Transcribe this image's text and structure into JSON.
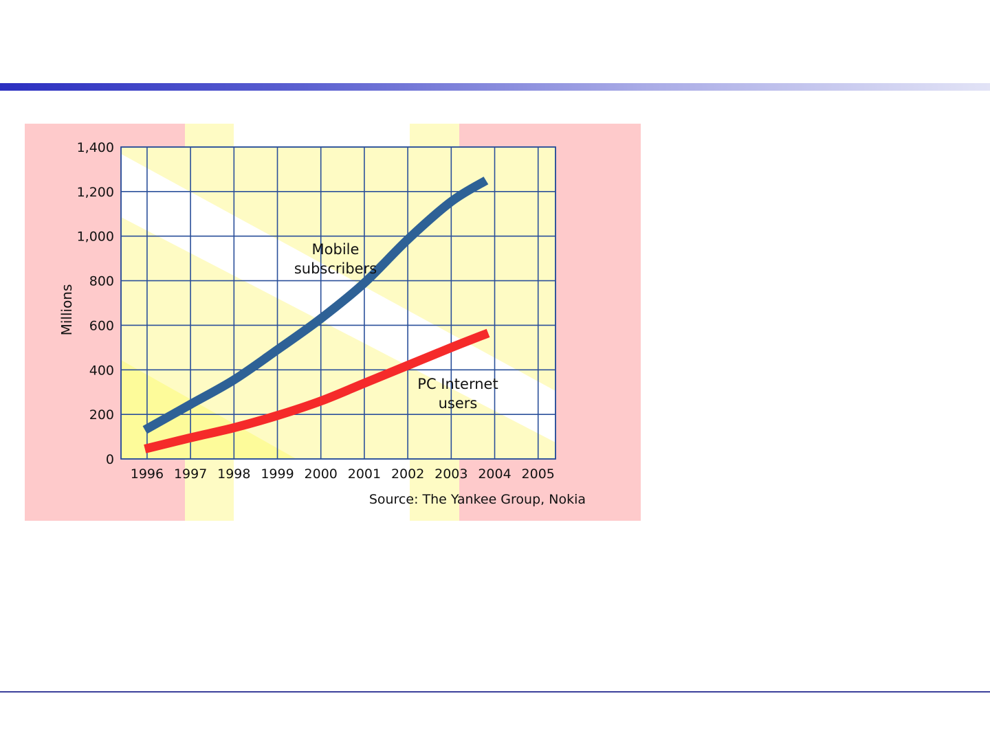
{
  "colors": {
    "header_bar_start": "#2b2fc0",
    "header_bar_end": "#e2e3f6",
    "footer_rule": "#3a3f9a",
    "chart_frame_bg": "#fecacb",
    "chart_plot_bg": "#fefbc4",
    "grid": "#2a4f9a",
    "mobile_series": "#2e6196",
    "pc_series": "#f52a2a"
  },
  "chart_data": {
    "type": "line",
    "title": "",
    "xlabel": "",
    "ylabel": "Millions",
    "x": [
      1996,
      1997,
      1998,
      1999,
      2000,
      2001,
      2002,
      2003,
      2004,
      2005
    ],
    "x_tick_labels": [
      "1996",
      "1997",
      "1998",
      "1999",
      "2000",
      "2001",
      "2002",
      "2003",
      "2004",
      "2005"
    ],
    "xlim": [
      1995.4,
      2005.4
    ],
    "ylim": [
      0,
      1400
    ],
    "y_ticks": [
      0,
      200,
      400,
      600,
      800,
      1000,
      1200,
      1400
    ],
    "y_tick_labels": [
      "0",
      "200",
      "400",
      "600",
      "800",
      "1,000",
      "1,200",
      "1,400"
    ],
    "grid": true,
    "legend": "none",
    "series": [
      {
        "name": "Mobile subscribers",
        "color": "#2e6196",
        "x": [
          1995.95,
          1997,
          1998,
          1999,
          2000,
          2001,
          2002,
          2003,
          2003.8
        ],
        "values": [
          130,
          245,
          355,
          490,
          630,
          790,
          985,
          1155,
          1250
        ]
      },
      {
        "name": "PC Internet users",
        "color": "#f52a2a",
        "x": [
          1995.95,
          1997,
          1998,
          1999,
          2000,
          2001,
          2002,
          2003,
          2003.85
        ],
        "values": [
          45,
          95,
          140,
          195,
          260,
          340,
          420,
          500,
          565
        ]
      }
    ],
    "annotations": [
      {
        "text": "Mobile subscribers",
        "lines": [
          "Mobile",
          "subscribers"
        ]
      },
      {
        "text": "PC Internet users",
        "lines": [
          "PC Internet",
          "users"
        ]
      },
      {
        "text": "Source: The Yankee Group, Nokia"
      }
    ]
  }
}
